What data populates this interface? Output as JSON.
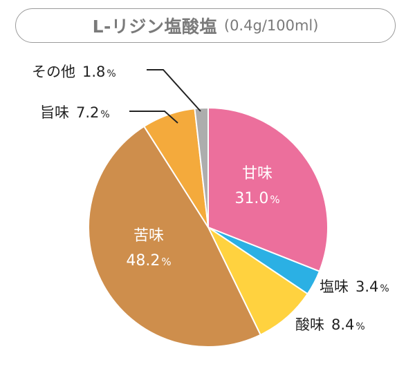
{
  "title": {
    "main": "L-リジン塩酸塩",
    "sub": "(0.4g/100ml)"
  },
  "chart_data": {
    "type": "pie",
    "slices": [
      {
        "name": "甘味",
        "value": 31.0,
        "display": "31.0",
        "color": "#EC6F9C",
        "label": "inside"
      },
      {
        "name": "塩味",
        "value": 3.4,
        "display": "3.4",
        "color": "#2BB0E4",
        "label": "outside"
      },
      {
        "name": "酸味",
        "value": 8.4,
        "display": "8.4",
        "color": "#FFD23F",
        "label": "outside"
      },
      {
        "name": "苦味",
        "value": 48.2,
        "display": "48.2",
        "color": "#CE8E4C",
        "label": "inside"
      },
      {
        "name": "旨味",
        "value": 7.2,
        "display": "7.2",
        "color": "#F4AA3C",
        "label": "outside"
      },
      {
        "name": "その他",
        "value": 1.8,
        "display": "1.8",
        "color": "#ADADAD",
        "label": "outside"
      }
    ],
    "unit": "%",
    "start": "12 o'clock",
    "direction": "clockwise"
  }
}
